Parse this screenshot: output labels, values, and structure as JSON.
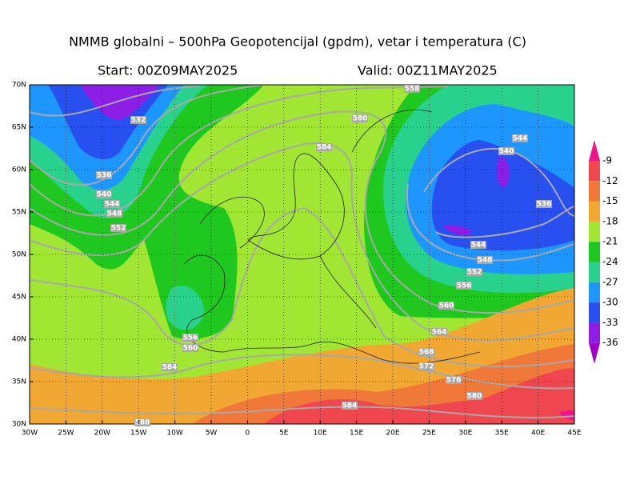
{
  "header": {
    "title": "NMMB globalni – 500hPa Geopotencijal (gpdm), vetar i temperatura (C)",
    "start": "Start: 00Z09MAY2025",
    "valid": "Valid: 00Z11MAY2025"
  },
  "lat_labels": [
    "70N",
    "65N",
    "60N",
    "55N",
    "50N",
    "45N",
    "40N",
    "35N",
    "30N"
  ],
  "lon_labels": [
    "30W",
    "25W",
    "20W",
    "15W",
    "10W",
    "5W",
    "0",
    "5E",
    "10E",
    "15E",
    "20E",
    "25E",
    "30E",
    "35E",
    "40E",
    "45E"
  ],
  "colorbar_labels": [
    "-9",
    "-12",
    "-15",
    "-18",
    "-21",
    "-24",
    "-27",
    "-30",
    "-33",
    "-36"
  ],
  "contour_labels": [
    "558",
    "532",
    "580",
    "584",
    "544",
    "540",
    "536",
    "540",
    "544",
    "548",
    "552",
    "536",
    "544",
    "548",
    "552",
    "556",
    "560",
    "564",
    "568",
    "572",
    "576",
    "580",
    "584",
    "556",
    "560",
    "584",
    "588"
  ]
}
